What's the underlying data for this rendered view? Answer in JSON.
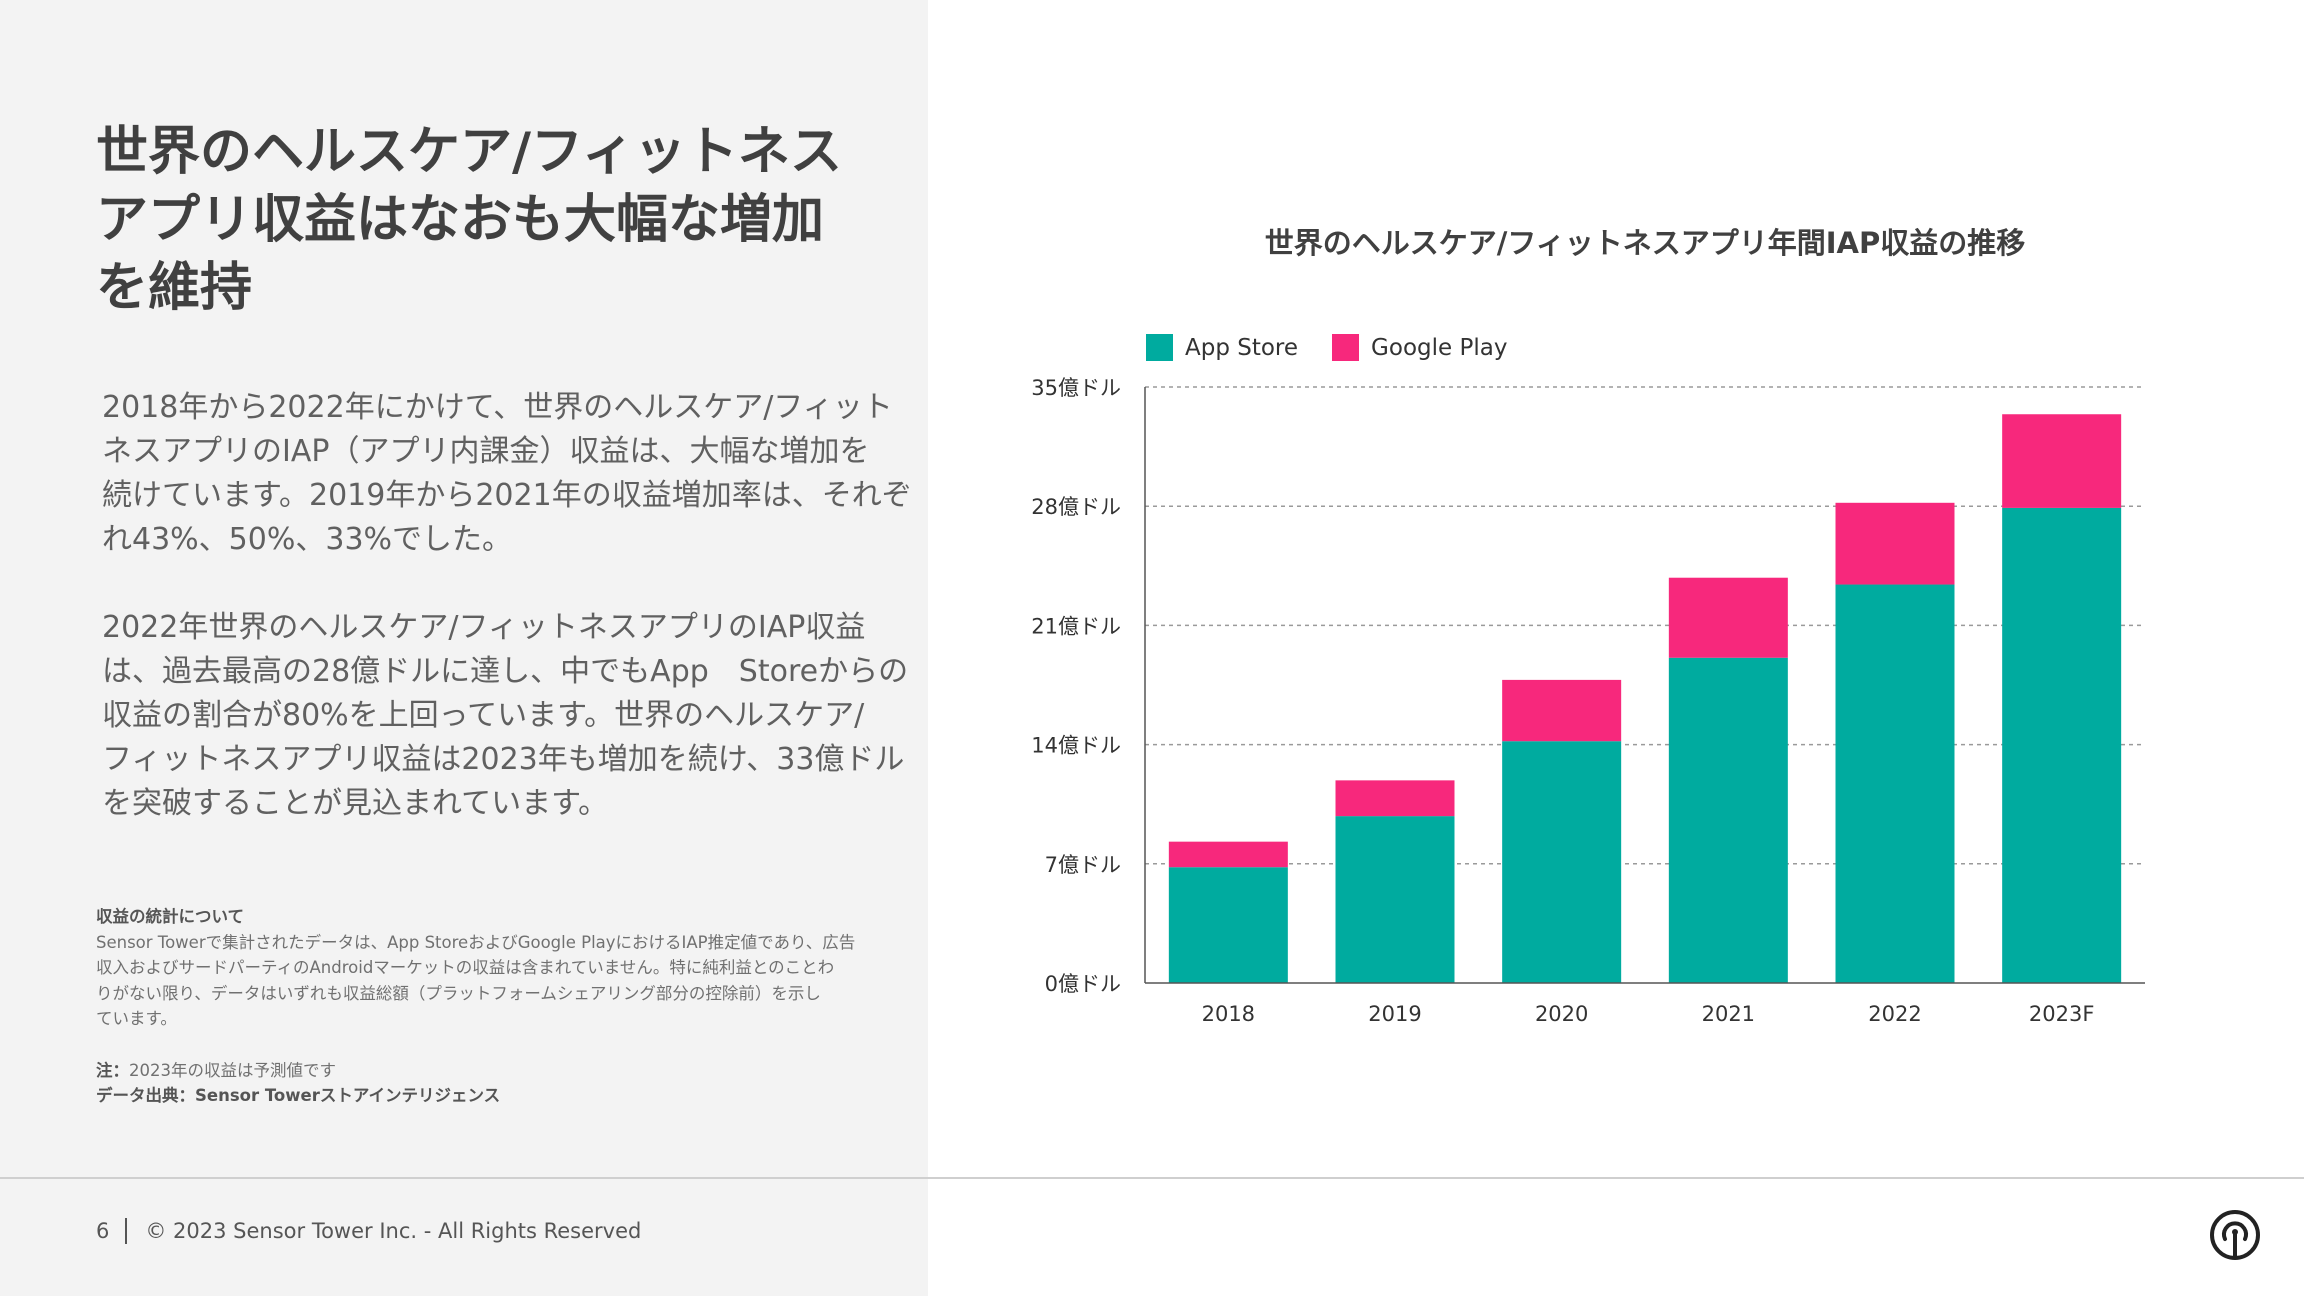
{
  "headline": {
    "lines": [
      "世界のヘルスケア/フィットネス",
      "アプリ収益はなおも大幅な増加",
      "を維持"
    ]
  },
  "body": {
    "paragraph1": [
      "2018年から2022年にかけて、世界のヘルスケア/フィット",
      "ネスアプリのIAP（アプリ内課金）収益は、大幅な増加を",
      "続けています。2019年から2021年の収益増加率は、それぞ",
      "れ43%、50%、33%でした。"
    ],
    "paragraph2": [
      "2022年世界のヘルスケア/フィットネスアプリのIAP収益",
      "は、過去最高の28億ドルに達し、中でもApp　Storeからの",
      "収益の割合が80%を上回っています。世界のヘルスケア/",
      "フィットネスアプリ収益は2023年も増加を続け、33億ドル",
      "を突破することが見込まれています。"
    ]
  },
  "notes": {
    "heading": "収益の統計について",
    "lines": [
      "Sensor Towerで集計されたデータは、App StoreおよびGoogle PlayにおけるIAP推定値であり、広告",
      "収入およびサードパーティのAndroidマーケットの収益は含まれていません。特に純利益とのことわ",
      "りがない限り、データはいずれも収益総額（プラットフォームシェアリング部分の控除前）を示し",
      "ています。"
    ],
    "note_label": "注：",
    "note_text": "2023年の収益は予測値です",
    "source_label": "データ出典：Sensor Towerストアインテリジェンス"
  },
  "footer": {
    "page_number": "6",
    "copyright": "© 2023 Sensor Tower Inc. - All Rights Reserved",
    "logo_icon": "sensor-tower-logo-icon"
  },
  "colors": {
    "app_store": "#00ab9f",
    "google_play": "#f7287c",
    "grid": "#9a9a9a",
    "axis_text": "#333333"
  },
  "chart_data": {
    "type": "bar",
    "stacked": true,
    "title": "世界のヘルスケア/フィットネスアプリ年間IAP収益の推移",
    "categories": [
      "2018",
      "2019",
      "2020",
      "2021",
      "2022",
      "2023F"
    ],
    "series": [
      {
        "name": "App Store",
        "values": [
          6.8,
          9.8,
          14.2,
          19.1,
          23.4,
          27.9
        ]
      },
      {
        "name": "Google Play",
        "values": [
          1.5,
          2.1,
          3.6,
          4.7,
          4.8,
          5.5
        ]
      }
    ],
    "y_ticks": [
      0,
      7,
      14,
      21,
      28,
      35
    ],
    "y_tick_labels": [
      "0億ドル",
      "7億ドル",
      "14億ドル",
      "21億ドル",
      "28億ドル",
      "35億ドル"
    ],
    "ylim": [
      0,
      35
    ],
    "grid": true,
    "legend_position": "top-left"
  }
}
